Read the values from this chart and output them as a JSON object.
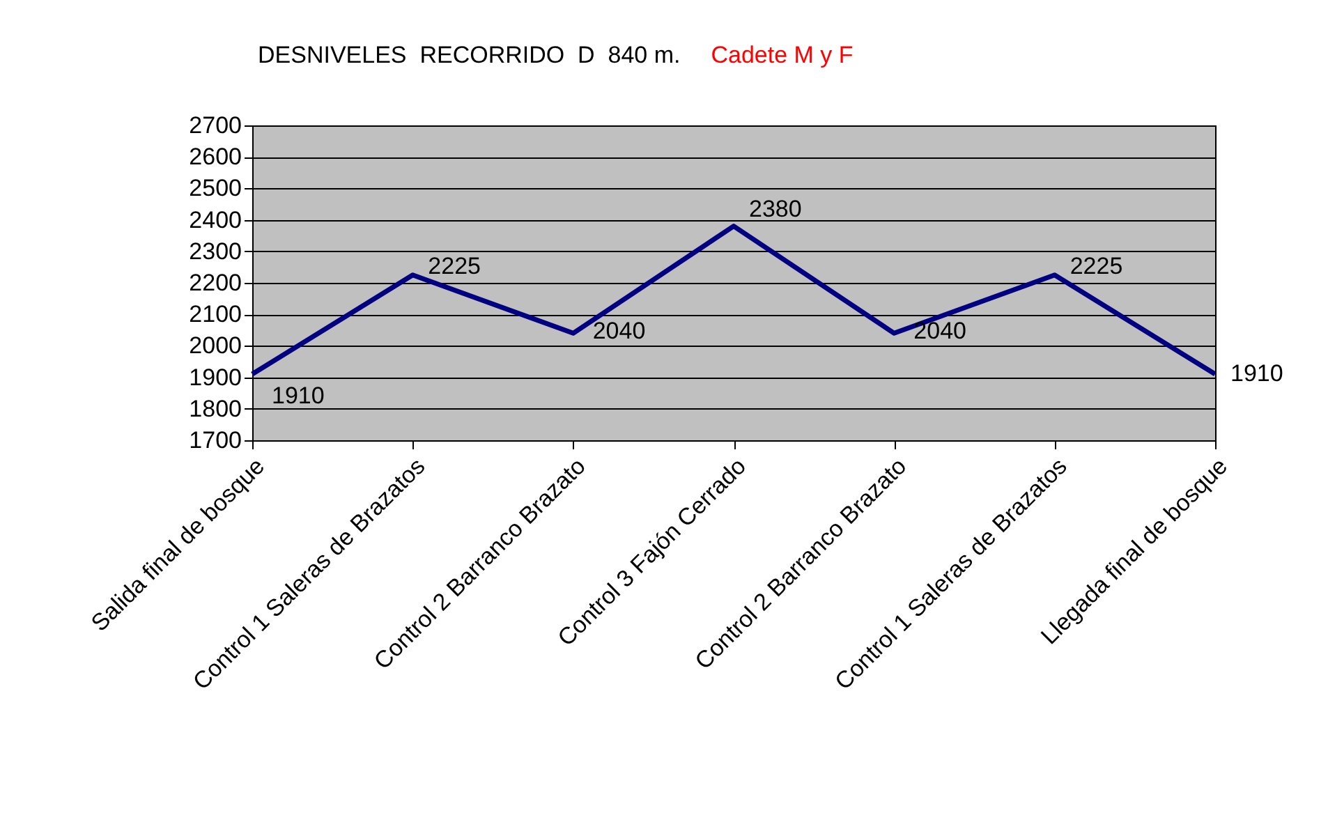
{
  "chart_data": {
    "type": "line",
    "title": "DESNIVELES  RECORRIDO  D  840 m.",
    "subtitle": "Cadete M y F",
    "categories": [
      "Salida final de bosque",
      "Control 1 Saleras de Brazatos",
      "Control 2 Barranco Brazato",
      "Control 3 Fajón Cerrado",
      "Control 2 Barranco Brazato",
      "Control 1 Saleras de Brazatos",
      "Llegada final de bosque"
    ],
    "series": [
      {
        "color": "#000080",
        "values": [
          1910,
          2225,
          2040,
          2380,
          2040,
          2225,
          1910
        ]
      }
    ],
    "ylim": [
      1700,
      2700
    ],
    "yticks": [
      1700,
      1800,
      1900,
      2000,
      2100,
      2200,
      2300,
      2400,
      2500,
      2600,
      2700
    ],
    "grid": "y",
    "data_labels": true,
    "legend": false,
    "marker": "none",
    "line_style": "solid"
  }
}
